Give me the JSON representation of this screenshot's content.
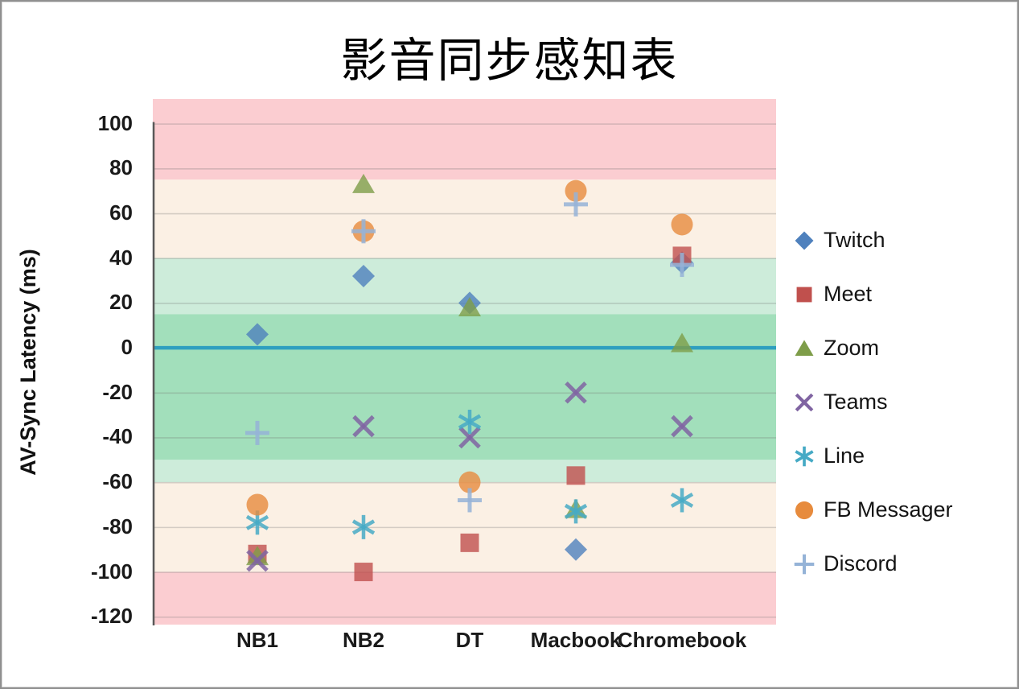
{
  "chart_data": {
    "type": "scatter",
    "title": "影音同步感知表",
    "ylabel": "AV-Sync Latency (ms)",
    "xlabel": "",
    "categories": [
      "NB1",
      "NB2",
      "DT",
      "Macbook",
      "Chromebook"
    ],
    "series": [
      {
        "name": "Twitch",
        "marker": "diamond",
        "color": "#4f81bd",
        "values": [
          6,
          32,
          20,
          -90,
          38
        ]
      },
      {
        "name": "Meet",
        "marker": "square",
        "color": "#c0504d",
        "values": [
          -92,
          -100,
          -87,
          -57,
          41
        ]
      },
      {
        "name": "Zoom",
        "marker": "triangle",
        "color": "#7e9d49",
        "values": [
          -93,
          73,
          18,
          -72,
          2
        ]
      },
      {
        "name": "Teams",
        "marker": "x",
        "color": "#8064a2",
        "values": [
          -95,
          -35,
          -40,
          -20,
          -35
        ]
      },
      {
        "name": "Line",
        "marker": "asterisk",
        "color": "#46aac5",
        "values": [
          -78,
          -80,
          -33,
          -73,
          -68
        ]
      },
      {
        "name": "FB Messager",
        "marker": "circle",
        "color": "#e78b3d",
        "values": [
          -70,
          52,
          -60,
          70,
          55
        ]
      },
      {
        "name": "Discord",
        "marker": "plus",
        "color": "#95b3d7",
        "values": [
          -38,
          52,
          -68,
          64,
          37
        ]
      }
    ],
    "y_ticks": [
      100,
      80,
      60,
      40,
      20,
      0,
      -20,
      -40,
      -60,
      -80,
      -100,
      -120
    ],
    "ylim": [
      -123.5,
      111
    ],
    "grid": true,
    "legend_position": "right",
    "zero_line": {
      "value": 0,
      "color": "#2e9fbf"
    },
    "bands": [
      {
        "from": 75,
        "to": 111,
        "color": "#fbcdd1"
      },
      {
        "from": 40,
        "to": 75,
        "color": "#fbf0e4"
      },
      {
        "from": 15,
        "to": 40,
        "color": "#cdecda"
      },
      {
        "from": -50,
        "to": 15,
        "color": "#a2dfbb"
      },
      {
        "from": -60,
        "to": -50,
        "color": "#cdecda"
      },
      {
        "from": -100,
        "to": -60,
        "color": "#fbf0e4"
      },
      {
        "from": -123.5,
        "to": -100,
        "color": "#fbcdd1"
      }
    ]
  }
}
